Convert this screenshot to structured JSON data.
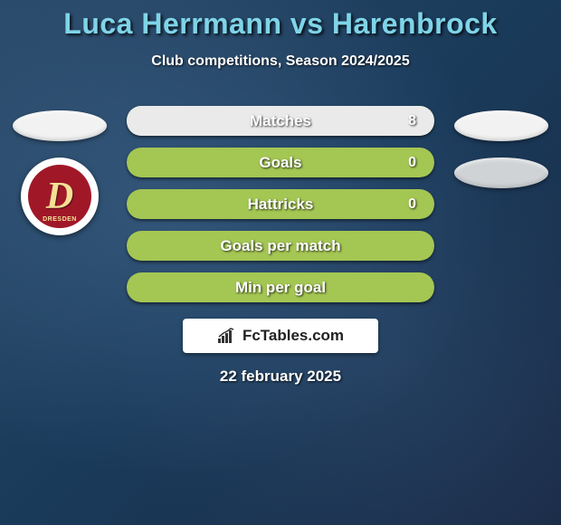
{
  "title": "Luca Herrmann vs Harenbrock",
  "subtitle": "Club competitions, Season 2024/2025",
  "date": "22 february 2025",
  "brand": "FcTables.com",
  "colors": {
    "title": "#7fd4e8",
    "text": "#ffffff",
    "bar_left_fill": "#7fd4e8",
    "bar_right_fill": "#eaeaea",
    "bar_bg_dark": "#a4c653",
    "bar_bg_full": "#a4c653",
    "ellipse_light": "#f2f2f2",
    "ellipse_dark": "#cfd3d6",
    "badge_bg": "#ffffff",
    "badge_inner": "#a01828",
    "badge_letter": "#f5e095"
  },
  "badge": {
    "letter": "D",
    "ribbon": "DRESDEN"
  },
  "side_left": {
    "ellipse_color": "#f2f2f2"
  },
  "side_right": {
    "ellipse_top_color": "#f2f2f2",
    "ellipse_bottom_color": "#cfd3d6"
  },
  "bars": [
    {
      "label": "Matches",
      "left_value": "",
      "right_value": "8",
      "left_pct": 0,
      "right_pct": 100,
      "left_color": "#7fd4e8",
      "right_color": "#eaeaea",
      "bg_color": "#a4c653"
    },
    {
      "label": "Goals",
      "left_value": "",
      "right_value": "0",
      "left_pct": 0,
      "right_pct": 0,
      "left_color": "#7fd4e8",
      "right_color": "#eaeaea",
      "bg_color": "#a4c653"
    },
    {
      "label": "Hattricks",
      "left_value": "",
      "right_value": "0",
      "left_pct": 0,
      "right_pct": 0,
      "left_color": "#7fd4e8",
      "right_color": "#eaeaea",
      "bg_color": "#a4c653"
    },
    {
      "label": "Goals per match",
      "left_value": "",
      "right_value": "",
      "left_pct": 0,
      "right_pct": 0,
      "left_color": "#7fd4e8",
      "right_color": "#eaeaea",
      "bg_color": "#a4c653"
    },
    {
      "label": "Min per goal",
      "left_value": "",
      "right_value": "",
      "left_pct": 0,
      "right_pct": 0,
      "left_color": "#7fd4e8",
      "right_color": "#eaeaea",
      "bg_color": "#a4c653"
    }
  ]
}
